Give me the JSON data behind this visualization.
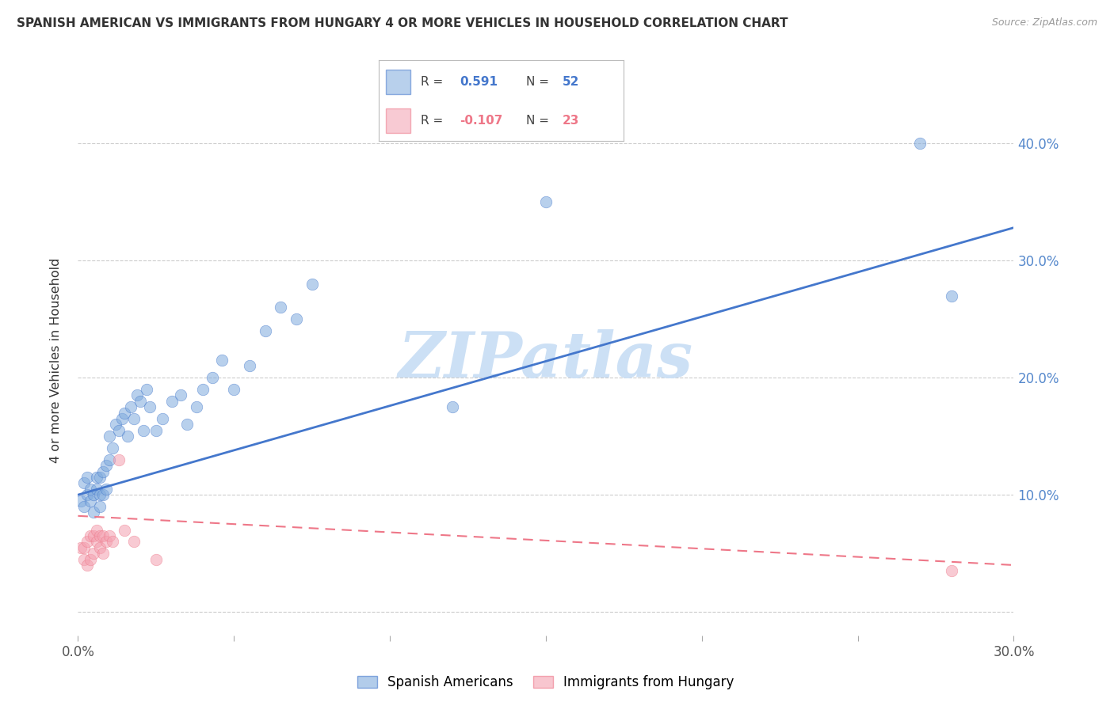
{
  "title": "SPANISH AMERICAN VS IMMIGRANTS FROM HUNGARY 4 OR MORE VEHICLES IN HOUSEHOLD CORRELATION CHART",
  "source": "Source: ZipAtlas.com",
  "ylabel": "4 or more Vehicles in Household",
  "xlim": [
    0.0,
    0.3
  ],
  "ylim": [
    -0.02,
    0.45
  ],
  "xticks": [
    0.0,
    0.05,
    0.1,
    0.15,
    0.2,
    0.25,
    0.3
  ],
  "xtick_labels": [
    "0.0%",
    "",
    "",
    "",
    "",
    "",
    "30.0%"
  ],
  "yticks": [
    0.0,
    0.1,
    0.2,
    0.3,
    0.4
  ],
  "ytick_labels": [
    "",
    "10.0%",
    "20.0%",
    "30.0%",
    "40.0%"
  ],
  "background_color": "#ffffff",
  "watermark": "ZIPatlas",
  "watermark_color": "#cce0f5",
  "blue_R": 0.591,
  "blue_N": 52,
  "pink_R": -0.107,
  "pink_N": 23,
  "blue_color": "#7faadd",
  "pink_color": "#f4a0b0",
  "blue_line_color": "#4477cc",
  "pink_line_color": "#ee7788",
  "legend_label_blue": "Spanish Americans",
  "legend_label_pink": "Immigrants from Hungary",
  "blue_x": [
    0.001,
    0.002,
    0.002,
    0.003,
    0.003,
    0.004,
    0.004,
    0.005,
    0.005,
    0.006,
    0.006,
    0.007,
    0.007,
    0.007,
    0.008,
    0.008,
    0.009,
    0.009,
    0.01,
    0.01,
    0.011,
    0.012,
    0.013,
    0.014,
    0.015,
    0.016,
    0.017,
    0.018,
    0.019,
    0.02,
    0.021,
    0.022,
    0.023,
    0.025,
    0.027,
    0.03,
    0.033,
    0.035,
    0.038,
    0.04,
    0.043,
    0.046,
    0.05,
    0.055,
    0.06,
    0.065,
    0.07,
    0.075,
    0.12,
    0.15,
    0.27,
    0.28
  ],
  "blue_y": [
    0.095,
    0.09,
    0.11,
    0.1,
    0.115,
    0.095,
    0.105,
    0.085,
    0.1,
    0.105,
    0.115,
    0.09,
    0.1,
    0.115,
    0.1,
    0.12,
    0.105,
    0.125,
    0.13,
    0.15,
    0.14,
    0.16,
    0.155,
    0.165,
    0.17,
    0.15,
    0.175,
    0.165,
    0.185,
    0.18,
    0.155,
    0.19,
    0.175,
    0.155,
    0.165,
    0.18,
    0.185,
    0.16,
    0.175,
    0.19,
    0.2,
    0.215,
    0.19,
    0.21,
    0.24,
    0.26,
    0.25,
    0.28,
    0.175,
    0.35,
    0.4,
    0.27
  ],
  "pink_x": [
    0.001,
    0.002,
    0.002,
    0.003,
    0.003,
    0.004,
    0.004,
    0.005,
    0.005,
    0.006,
    0.006,
    0.007,
    0.007,
    0.008,
    0.008,
    0.009,
    0.01,
    0.011,
    0.013,
    0.015,
    0.018,
    0.025,
    0.28
  ],
  "pink_y": [
    0.055,
    0.045,
    0.055,
    0.04,
    0.06,
    0.045,
    0.065,
    0.05,
    0.065,
    0.06,
    0.07,
    0.055,
    0.065,
    0.05,
    0.065,
    0.06,
    0.065,
    0.06,
    0.13,
    0.07,
    0.06,
    0.045,
    0.035
  ],
  "blue_line_x0": 0.0,
  "blue_line_x1": 0.3,
  "blue_line_y0": 0.1,
  "blue_line_y1": 0.328,
  "pink_line_x0": 0.0,
  "pink_line_x1": 0.3,
  "pink_line_y0": 0.082,
  "pink_line_y1": 0.04
}
